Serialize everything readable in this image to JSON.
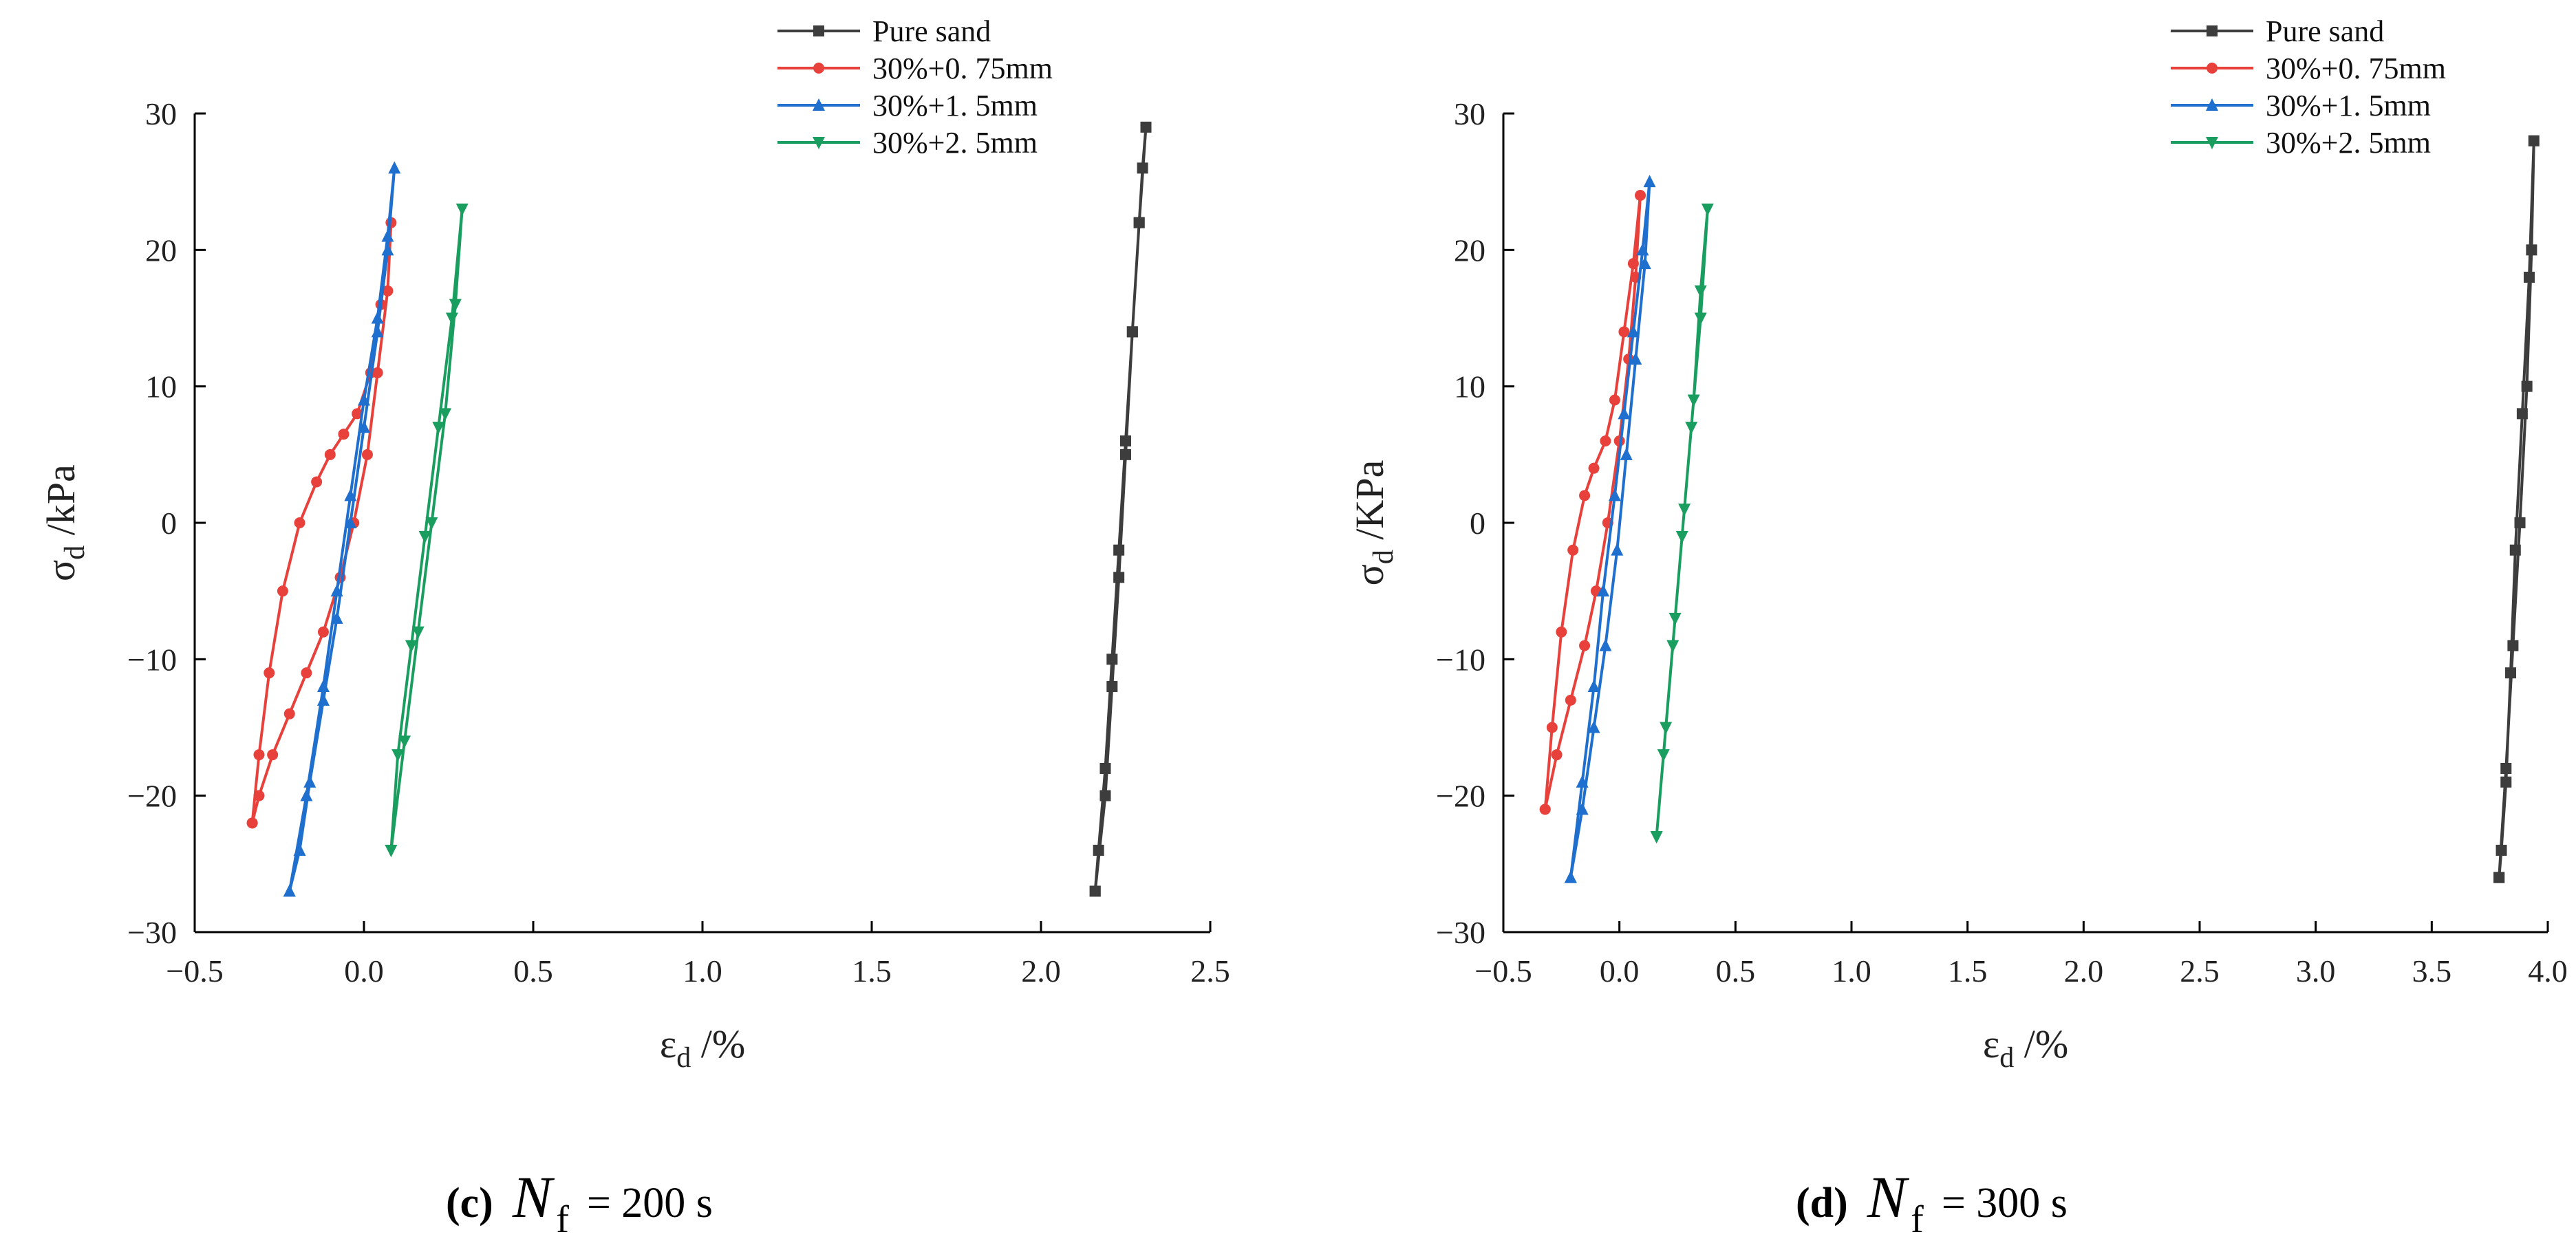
{
  "chart_data": [
    {
      "type": "line",
      "panel": "c",
      "xlabel_sym": "ε",
      "xlabel_sub": "d",
      "xlabel_unit": " /%",
      "ylabel_sym": "σ",
      "ylabel_sub": "d",
      "ylabel_unit": " /kPa",
      "xlim": [
        -0.5,
        2.5
      ],
      "ylim": [
        -30,
        30
      ],
      "xticks": [
        -0.5,
        0.0,
        0.5,
        1.0,
        1.5,
        2.0,
        2.5
      ],
      "xtick_labels": [
        "−0.5",
        "0.0",
        "0.5",
        "1.0",
        "1.5",
        "2.0",
        "2.5"
      ],
      "yticks": [
        -30,
        -20,
        -10,
        0,
        10,
        20,
        30
      ],
      "ytick_labels": [
        "−30",
        "−20",
        "−10",
        "0",
        "10",
        "20",
        "30"
      ],
      "legend_position": "top-right",
      "series": [
        {
          "name": "Pure sand",
          "color": "#3d3d3d",
          "marker": "square",
          "x": [
            2.16,
            2.19,
            2.21,
            2.23,
            2.25,
            2.27,
            2.29,
            2.3,
            2.31,
            2.29,
            2.27,
            2.25,
            2.23,
            2.21,
            2.19,
            2.17,
            2.16
          ],
          "y": [
            -27,
            -20,
            -12,
            -4,
            5,
            14,
            22,
            26,
            29,
            22,
            14,
            6,
            -2,
            -10,
            -18,
            -24,
            -27
          ]
        },
        {
          "name": "30%+0. 75mm",
          "color": "#e8413c",
          "marker": "circle",
          "x": [
            -0.33,
            -0.31,
            -0.28,
            -0.24,
            -0.19,
            -0.14,
            -0.1,
            -0.06,
            -0.02,
            0.02,
            0.05,
            0.08,
            0.07,
            0.04,
            0.01,
            -0.03,
            -0.07,
            -0.12,
            -0.17,
            -0.22,
            -0.27,
            -0.31,
            -0.33
          ],
          "y": [
            -22,
            -17,
            -11,
            -5,
            0,
            3,
            5,
            6.5,
            8,
            11,
            16,
            22,
            17,
            11,
            5,
            0,
            -4,
            -8,
            -11,
            -14,
            -17,
            -20,
            -22
          ]
        },
        {
          "name": "30%+1. 5mm",
          "color": "#1f6fcf",
          "marker": "triangle-up",
          "x": [
            -0.22,
            -0.17,
            -0.12,
            -0.08,
            -0.04,
            0.0,
            0.04,
            0.07,
            0.09,
            0.07,
            0.04,
            0.0,
            -0.04,
            -0.08,
            -0.12,
            -0.16,
            -0.19,
            -0.22
          ],
          "y": [
            -27,
            -20,
            -12,
            -5,
            2,
            9,
            15,
            21,
            26,
            20,
            14,
            7,
            0,
            -7,
            -13,
            -19,
            -24,
            -27
          ]
        },
        {
          "name": "30%+2. 5mm",
          "color": "#1a9e5f",
          "marker": "triangle-down",
          "x": [
            0.08,
            0.12,
            0.16,
            0.2,
            0.24,
            0.27,
            0.29,
            0.26,
            0.22,
            0.18,
            0.14,
            0.1,
            0.08
          ],
          "y": [
            -24,
            -16,
            -8,
            0,
            8,
            16,
            23,
            15,
            7,
            -1,
            -9,
            -17,
            -24
          ]
        }
      ]
    },
    {
      "type": "line",
      "panel": "d",
      "xlabel_sym": "ε",
      "xlabel_sub": "d",
      "xlabel_unit": " /%",
      "ylabel_sym": "σ",
      "ylabel_sub": "d",
      "ylabel_unit": " /KPa",
      "xlim": [
        -0.5,
        4.0
      ],
      "ylim": [
        -30,
        30
      ],
      "xticks": [
        -0.5,
        0.0,
        0.5,
        1.0,
        1.5,
        2.0,
        2.5,
        3.0,
        3.5,
        4.0
      ],
      "xtick_labels": [
        "−0.5",
        "0.0",
        "0.5",
        "1.0",
        "1.5",
        "2.0",
        "2.5",
        "3.0",
        "3.5",
        "4.0"
      ],
      "yticks": [
        -30,
        -20,
        -10,
        0,
        10,
        20,
        30
      ],
      "ytick_labels": [
        "−30",
        "−20",
        "−10",
        "0",
        "10",
        "20",
        "30"
      ],
      "legend_position": "top-right",
      "series": [
        {
          "name": "Pure sand",
          "color": "#3d3d3d",
          "marker": "square",
          "x": [
            3.79,
            3.82,
            3.85,
            3.88,
            3.91,
            3.93,
            3.94,
            3.92,
            3.89,
            3.86,
            3.84,
            3.82,
            3.8,
            3.79
          ],
          "y": [
            -26,
            -18,
            -9,
            0,
            10,
            20,
            28,
            18,
            8,
            -2,
            -11,
            -19,
            -24,
            -26
          ]
        },
        {
          "name": "30%+0. 75mm",
          "color": "#e8413c",
          "marker": "circle",
          "x": [
            -0.32,
            -0.29,
            -0.25,
            -0.2,
            -0.15,
            -0.11,
            -0.06,
            -0.02,
            0.02,
            0.06,
            0.09,
            0.07,
            0.04,
            0.0,
            -0.05,
            -0.1,
            -0.15,
            -0.21,
            -0.27,
            -0.32
          ],
          "y": [
            -21,
            -15,
            -8,
            -2,
            2,
            4,
            6,
            9,
            14,
            19,
            24,
            18,
            12,
            6,
            0,
            -5,
            -9,
            -13,
            -17,
            -21
          ]
        },
        {
          "name": "30%+1. 5mm",
          "color": "#1f6fcf",
          "marker": "triangle-up",
          "x": [
            -0.21,
            -0.16,
            -0.11,
            -0.07,
            -0.02,
            0.02,
            0.06,
            0.1,
            0.13,
            0.11,
            0.07,
            0.03,
            -0.01,
            -0.06,
            -0.11,
            -0.16,
            -0.21
          ],
          "y": [
            -26,
            -19,
            -12,
            -5,
            2,
            8,
            14,
            20,
            25,
            19,
            12,
            5,
            -2,
            -9,
            -15,
            -21,
            -26
          ]
        },
        {
          "name": "30%+2. 5mm",
          "color": "#1a9e5f",
          "marker": "triangle-down",
          "x": [
            0.16,
            0.2,
            0.24,
            0.28,
            0.32,
            0.35,
            0.38,
            0.35,
            0.31,
            0.27,
            0.23,
            0.19,
            0.16
          ],
          "y": [
            -23,
            -15,
            -7,
            1,
            9,
            17,
            23,
            15,
            7,
            -1,
            -9,
            -17,
            -23
          ]
        }
      ]
    }
  ],
  "captions": [
    {
      "label": "(c)",
      "symbol": "N",
      "subscript": "f",
      "value": "= 200 s"
    },
    {
      "label": "(d)",
      "symbol": "N",
      "subscript": "f",
      "value": "= 300 s"
    }
  ]
}
